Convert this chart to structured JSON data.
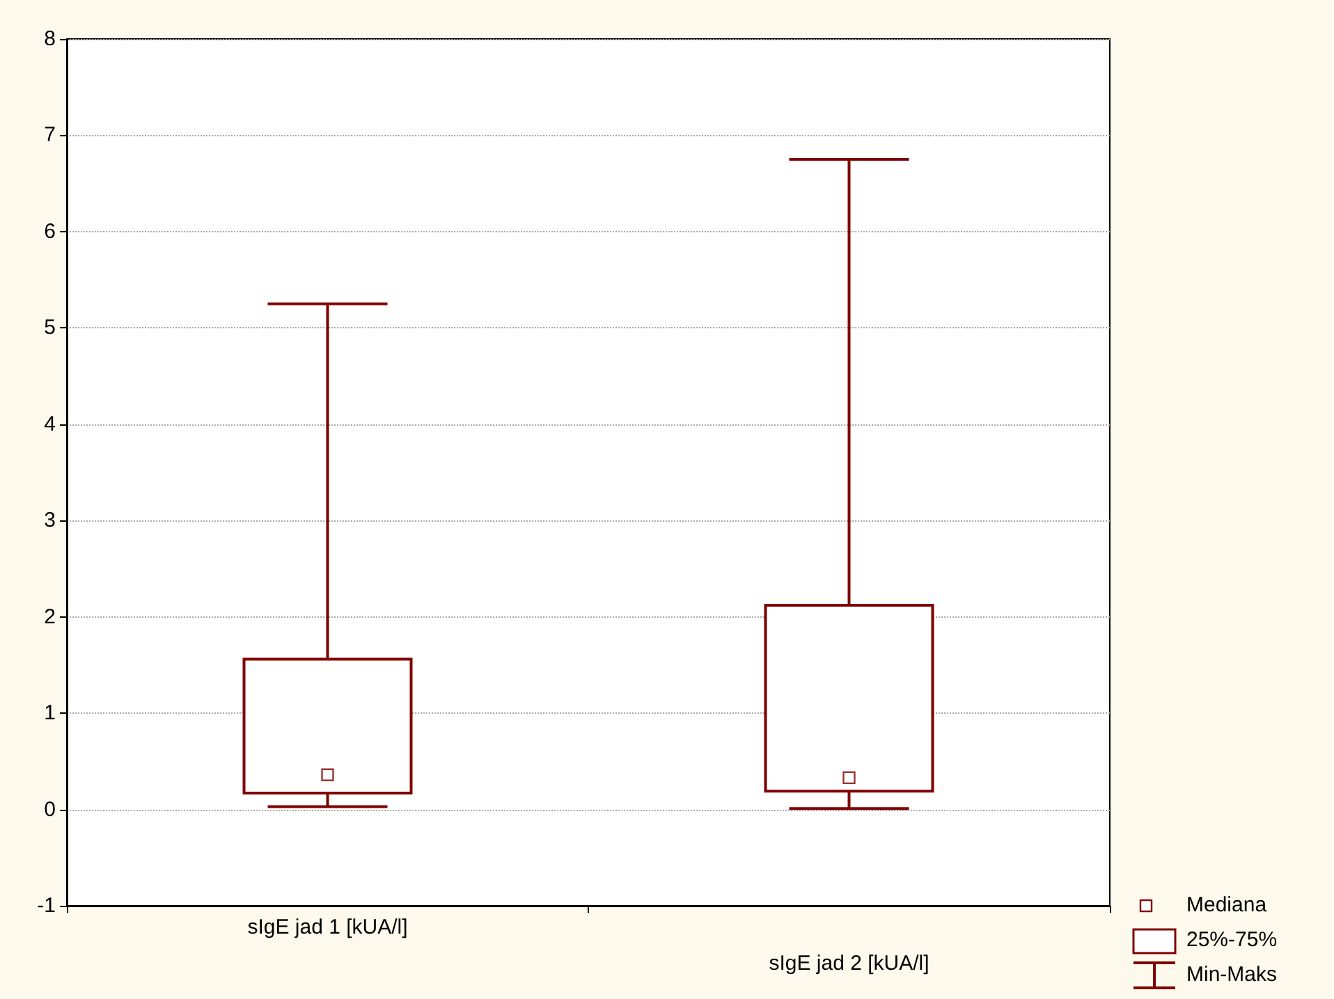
{
  "chart_data": {
    "type": "box",
    "categories": [
      "sIgE jad 1 [kUA/l]",
      "sIgE jad 2 [kUA/l]"
    ],
    "series": [
      {
        "color": "#800000",
        "marker": "square",
        "boxes": [
          {
            "low": 0.03,
            "q1": 0.17,
            "median": 0.36,
            "q3": 1.56,
            "high": 5.25
          },
          {
            "low": 0.01,
            "q1": 0.19,
            "median": 0.33,
            "q3": 2.12,
            "high": 6.75
          }
        ]
      }
    ],
    "annotations": [
      "Mediana",
      "25%-75%",
      "Min-Maks"
    ],
    "ylim": [
      -1,
      8
    ],
    "yticks": [
      -1,
      0,
      1,
      2,
      3,
      4,
      5,
      6,
      7,
      8
    ],
    "grid": "y"
  }
}
